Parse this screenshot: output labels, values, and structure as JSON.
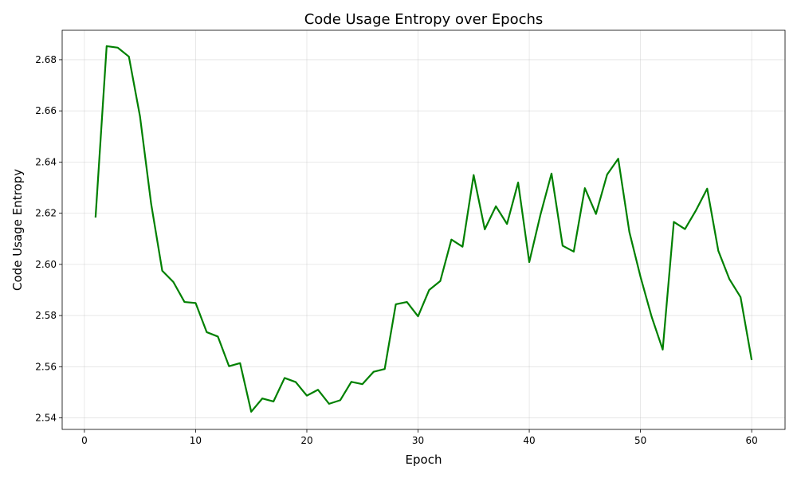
{
  "chart_data": {
    "type": "line",
    "title": "Code Usage Entropy over Epochs",
    "xlabel": "Epoch",
    "ylabel": "Code Usage Entropy",
    "xlim": [
      -2,
      63
    ],
    "ylim": [
      2.5355,
      2.6915
    ],
    "xticks": [
      0,
      10,
      20,
      30,
      40,
      50,
      60
    ],
    "yticks": [
      2.54,
      2.56,
      2.58,
      2.6,
      2.62,
      2.64,
      2.66,
      2.68
    ],
    "xtick_labels": [
      "0",
      "10",
      "20",
      "30",
      "40",
      "50",
      "60"
    ],
    "ytick_labels": [
      "2.54",
      "2.56",
      "2.58",
      "2.60",
      "2.62",
      "2.64",
      "2.66",
      "2.68"
    ],
    "grid": true,
    "series": [
      {
        "color": "#008000",
        "x": [
          1,
          2,
          3,
          4,
          5,
          6,
          7,
          8,
          9,
          10,
          11,
          12,
          13,
          14,
          15,
          16,
          17,
          18,
          19,
          20,
          21,
          22,
          23,
          24,
          25,
          26,
          27,
          28,
          29,
          30,
          31,
          32,
          33,
          34,
          35,
          36,
          37,
          38,
          39,
          40,
          41,
          42,
          43,
          44,
          45,
          46,
          47,
          48,
          49,
          50,
          51,
          52,
          53,
          54,
          55,
          56,
          57,
          58,
          59,
          60
        ],
        "y": [
          2.6183,
          2.6853,
          2.6847,
          2.6812,
          2.6578,
          2.6237,
          2.5975,
          2.5931,
          2.5853,
          2.5849,
          2.5735,
          2.5718,
          2.5602,
          2.5614,
          2.5424,
          2.5476,
          2.5464,
          2.5556,
          2.554,
          2.5487,
          2.551,
          2.5455,
          2.5469,
          2.5541,
          2.5532,
          2.558,
          2.5591,
          2.5844,
          2.5853,
          2.5797,
          2.59,
          2.5935,
          2.6097,
          2.6069,
          2.6349,
          2.6137,
          2.6227,
          2.6158,
          2.632,
          2.6009,
          2.6193,
          2.6355,
          2.6073,
          2.605,
          2.6298,
          2.6197,
          2.6351,
          2.6413,
          2.6127,
          2.5952,
          2.5796,
          2.5667,
          2.6166,
          2.6138,
          2.6212,
          2.6296,
          2.6053,
          2.5942,
          2.5872,
          2.5626
        ]
      }
    ]
  }
}
